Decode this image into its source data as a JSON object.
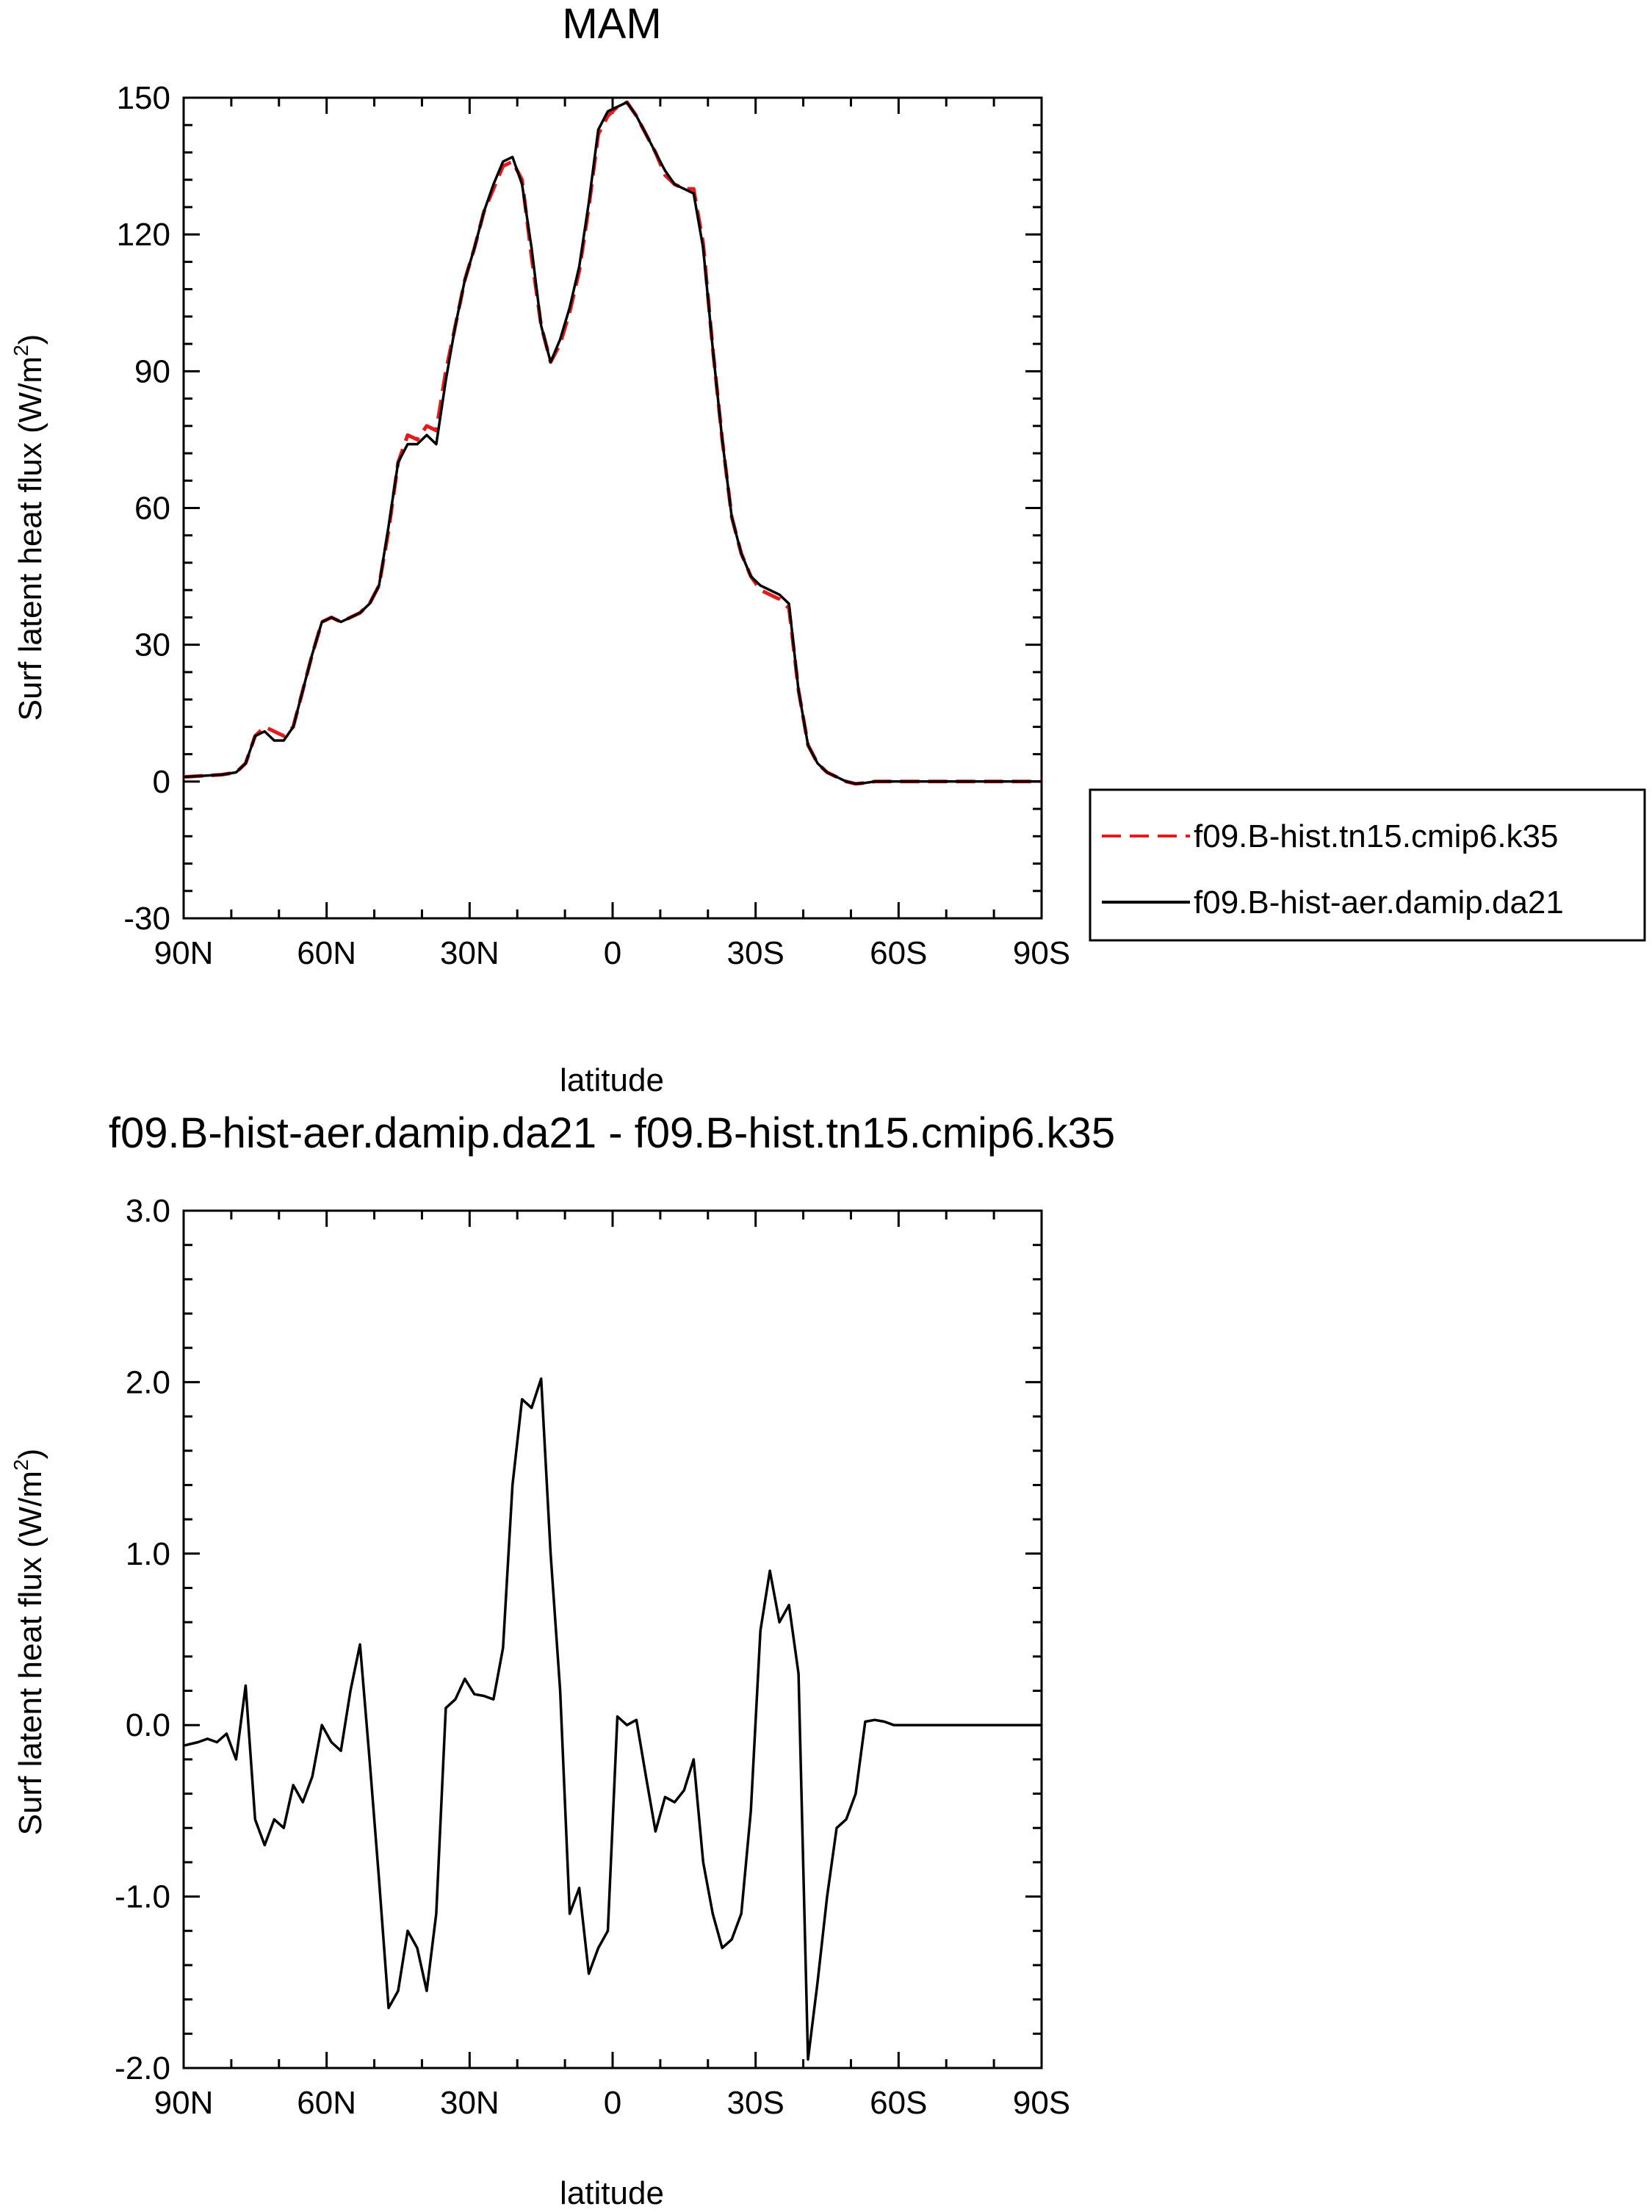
{
  "chart_data": [
    {
      "type": "line",
      "title": "MAM",
      "xlabel": "latitude",
      "ylabel": "Surf latent heat flux (W/m",
      "ylabel_sup": "2",
      "ylabel_tail": ")",
      "xlim": [
        90,
        -90
      ],
      "ylim": [
        -30,
        150
      ],
      "xticks": [
        {
          "value": 90,
          "label": "90N"
        },
        {
          "value": 60,
          "label": "60N"
        },
        {
          "value": 30,
          "label": "30N"
        },
        {
          "value": 0,
          "label": "0"
        },
        {
          "value": -30,
          "label": "30S"
        },
        {
          "value": -60,
          "label": "60S"
        },
        {
          "value": -90,
          "label": "90S"
        }
      ],
      "yticks": [
        {
          "value": -30,
          "label": "-30"
        },
        {
          "value": 0,
          "label": "0"
        },
        {
          "value": 30,
          "label": "30"
        },
        {
          "value": 60,
          "label": "60"
        },
        {
          "value": 90,
          "label": "90"
        },
        {
          "value": 120,
          "label": "120"
        },
        {
          "value": 150,
          "label": "150"
        }
      ],
      "legend_placement": "right",
      "series": [
        {
          "name": "f09.B-hist.tn15.cmip6.k35",
          "color": "#e41a1c",
          "dash": "dashed",
          "x": [
            90,
            82,
            79,
            77,
            75,
            73,
            71,
            69,
            67,
            65,
            63,
            61,
            59,
            57,
            55,
            53,
            51,
            49,
            47,
            45,
            43,
            41,
            39,
            37,
            35,
            33,
            31,
            29,
            27,
            25,
            23,
            21,
            19,
            17,
            15,
            13,
            11,
            9,
            7,
            5,
            3,
            1,
            -1,
            -3,
            -5,
            -7,
            -9,
            -11,
            -13,
            -15,
            -17,
            -19,
            -21,
            -23,
            -25,
            -27,
            -29,
            -31,
            -33,
            -35,
            -37,
            -39,
            -41,
            -43,
            -45,
            -47,
            -49,
            -51,
            -53,
            -55,
            -57,
            -59,
            -61,
            -63,
            -65,
            -67,
            -69,
            -71,
            -73,
            -75,
            -77,
            -79,
            -81,
            -83,
            -85,
            -87,
            -90
          ],
          "values": [
            1,
            1.5,
            2,
            4,
            10,
            12,
            11,
            10,
            12,
            20,
            28,
            35,
            36,
            35,
            36,
            37,
            39,
            43,
            55,
            70,
            76,
            75,
            78,
            77,
            90,
            100,
            110,
            117,
            125,
            130,
            135,
            136,
            132,
            115,
            100,
            92,
            96,
            103,
            112,
            126,
            142,
            146,
            148,
            149,
            146,
            142,
            138,
            133,
            131,
            130,
            130,
            118,
            95,
            75,
            58,
            50,
            45,
            42,
            41,
            40,
            38,
            20,
            8,
            4,
            2,
            1,
            0,
            -0.5,
            -0.3,
            0,
            0,
            0,
            0,
            0,
            0,
            0,
            0,
            0,
            0,
            0,
            0,
            0,
            0,
            0,
            0,
            0,
            0
          ]
        },
        {
          "name": "f09.B-hist-aer.damip.da21",
          "color": "#000000",
          "dash": "solid",
          "x": [
            90,
            82,
            79,
            77,
            75,
            73,
            71,
            69,
            67,
            65,
            63,
            61,
            59,
            57,
            55,
            53,
            51,
            49,
            47,
            45,
            43,
            41,
            39,
            37,
            35,
            33,
            31,
            29,
            27,
            25,
            23,
            21,
            19,
            17,
            15,
            13,
            11,
            9,
            7,
            5,
            3,
            1,
            -1,
            -3,
            -5,
            -7,
            -9,
            -11,
            -13,
            -15,
            -17,
            -19,
            -21,
            -23,
            -25,
            -27,
            -29,
            -31,
            -33,
            -35,
            -37,
            -39,
            -41,
            -43,
            -45,
            -47,
            -49,
            -51,
            -53,
            -55,
            -57,
            -59,
            -61,
            -63,
            -65,
            -67,
            -69,
            -71,
            -73,
            -75,
            -77,
            -79,
            -81,
            -83,
            -85,
            -87,
            -90
          ],
          "values": [
            1,
            1.5,
            2,
            4,
            10,
            11,
            9,
            9,
            12,
            20,
            28,
            35,
            36,
            35,
            36,
            37,
            39,
            43,
            56,
            70,
            74,
            74,
            76,
            74,
            88,
            100,
            110,
            117,
            125,
            131,
            136,
            137,
            131,
            117,
            100,
            92,
            97,
            104,
            113,
            127,
            143,
            147,
            148,
            149,
            146,
            142,
            138,
            134,
            131,
            130,
            129,
            117,
            95,
            75,
            58,
            50,
            45,
            43,
            42,
            41,
            39,
            20,
            8,
            4,
            2,
            1,
            0,
            -0.5,
            -0.3,
            0,
            0,
            0,
            0,
            0,
            0,
            0,
            0,
            0,
            0,
            0,
            0,
            0,
            0,
            0,
            0,
            0,
            0
          ]
        }
      ]
    },
    {
      "type": "line",
      "title": "f09.B-hist-aer.damip.da21 - f09.B-hist.tn15.cmip6.k35",
      "xlabel": "latitude",
      "ylabel": "Surf latent heat flux (W/m",
      "ylabel_sup": "2",
      "ylabel_tail": ")",
      "xlim": [
        90,
        -90
      ],
      "ylim": [
        -2.0,
        3.0
      ],
      "xticks": [
        {
          "value": 90,
          "label": "90N"
        },
        {
          "value": 60,
          "label": "60N"
        },
        {
          "value": 30,
          "label": "30N"
        },
        {
          "value": 0,
          "label": "0"
        },
        {
          "value": -30,
          "label": "30S"
        },
        {
          "value": -60,
          "label": "60S"
        },
        {
          "value": -90,
          "label": "90S"
        }
      ],
      "yticks": [
        {
          "value": -2.0,
          "label": "-2.0"
        },
        {
          "value": -1.0,
          "label": "-1.0"
        },
        {
          "value": 0.0,
          "label": "0.0"
        },
        {
          "value": 1.0,
          "label": "1.0"
        },
        {
          "value": 2.0,
          "label": "2.0"
        },
        {
          "value": 3.0,
          "label": "3.0"
        }
      ],
      "series": [
        {
          "color": "#000000",
          "dash": "solid",
          "x": [
            90,
            87,
            85,
            83,
            81,
            79,
            77,
            75,
            73,
            71,
            69,
            67,
            65,
            63,
            61,
            59,
            57,
            55,
            53,
            51,
            49,
            47,
            45,
            43,
            41,
            39,
            37,
            35,
            33,
            31,
            29,
            27,
            25,
            23,
            21,
            19,
            17,
            15,
            13,
            11,
            9,
            7,
            5,
            3,
            1,
            -1,
            -3,
            -5,
            -7,
            -9,
            -11,
            -13,
            -15,
            -17,
            -19,
            -21,
            -23,
            -25,
            -27,
            -29,
            -31,
            -33,
            -35,
            -37,
            -39,
            -41,
            -43,
            -45,
            -47,
            -49,
            -51,
            -53,
            -55,
            -57,
            -59,
            -61,
            -63,
            -65,
            -67,
            -69,
            -71,
            -73,
            -75,
            -77,
            -79,
            -81,
            -83,
            -85,
            -87,
            -90
          ],
          "values": [
            -0.12,
            -0.1,
            -0.08,
            -0.1,
            -0.05,
            -0.2,
            0.23,
            -0.55,
            -0.7,
            -0.55,
            -0.6,
            -0.35,
            -0.45,
            -0.3,
            0.0,
            -0.1,
            -0.15,
            0.2,
            0.47,
            -0.2,
            -0.9,
            -1.65,
            -1.55,
            -1.2,
            -1.3,
            -1.55,
            -1.1,
            0.1,
            0.15,
            0.27,
            0.18,
            0.17,
            0.15,
            0.45,
            1.4,
            1.9,
            1.85,
            2.02,
            1.0,
            0.2,
            -1.1,
            -0.95,
            -1.45,
            -1.3,
            -1.2,
            0.05,
            0.0,
            0.03,
            -0.3,
            -0.62,
            -0.42,
            -0.45,
            -0.38,
            -0.2,
            -0.8,
            -1.1,
            -1.3,
            -1.25,
            -1.1,
            -0.5,
            0.55,
            0.9,
            0.6,
            0.7,
            0.3,
            -1.95,
            -1.5,
            -1.0,
            -0.6,
            -0.55,
            -0.4,
            0.02,
            0.03,
            0.02,
            0.0,
            0.0,
            0.0,
            0.0,
            0.0,
            0.0,
            0.0,
            0.0,
            0.0,
            0.0,
            0.0,
            0.0,
            0.0,
            0.0,
            0.0,
            0.0
          ]
        }
      ]
    }
  ]
}
